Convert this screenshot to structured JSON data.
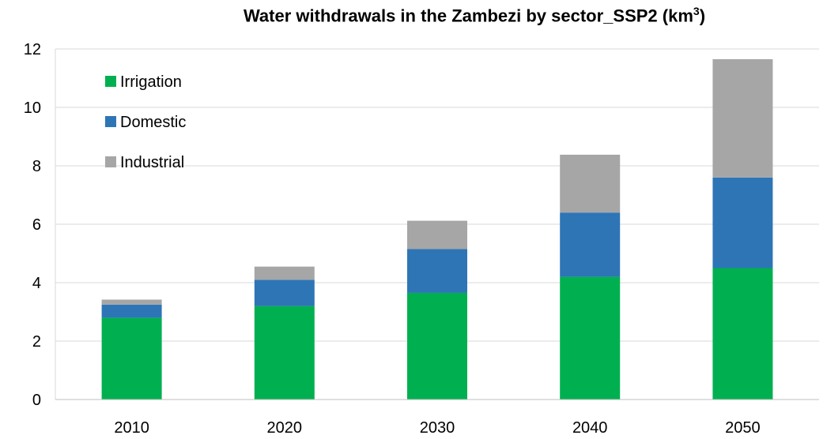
{
  "chart_data": {
    "type": "bar",
    "stacked": true,
    "title": "Water withdrawals in the Zambezi by sector_SSP2 (km",
    "title_superscript": "3",
    "title_suffix": ")",
    "xlabel": "",
    "ylabel": "",
    "categories": [
      "2010",
      "2020",
      "2030",
      "2040",
      "2050"
    ],
    "ylim": [
      0,
      12
    ],
    "yticks": [
      0,
      2,
      4,
      6,
      8,
      10,
      12
    ],
    "grid": true,
    "legend_position": "top-left",
    "series": [
      {
        "name": "Irrigation",
        "color": "#00b050",
        "values": [
          2.8,
          3.2,
          3.65,
          4.2,
          4.5
        ]
      },
      {
        "name": "Domestic",
        "color": "#2e75b6",
        "values": [
          0.45,
          0.9,
          1.5,
          2.2,
          3.1
        ]
      },
      {
        "name": "Industrial",
        "color": "#a6a6a6",
        "values": [
          0.17,
          0.45,
          0.97,
          1.98,
          4.05
        ]
      }
    ]
  }
}
